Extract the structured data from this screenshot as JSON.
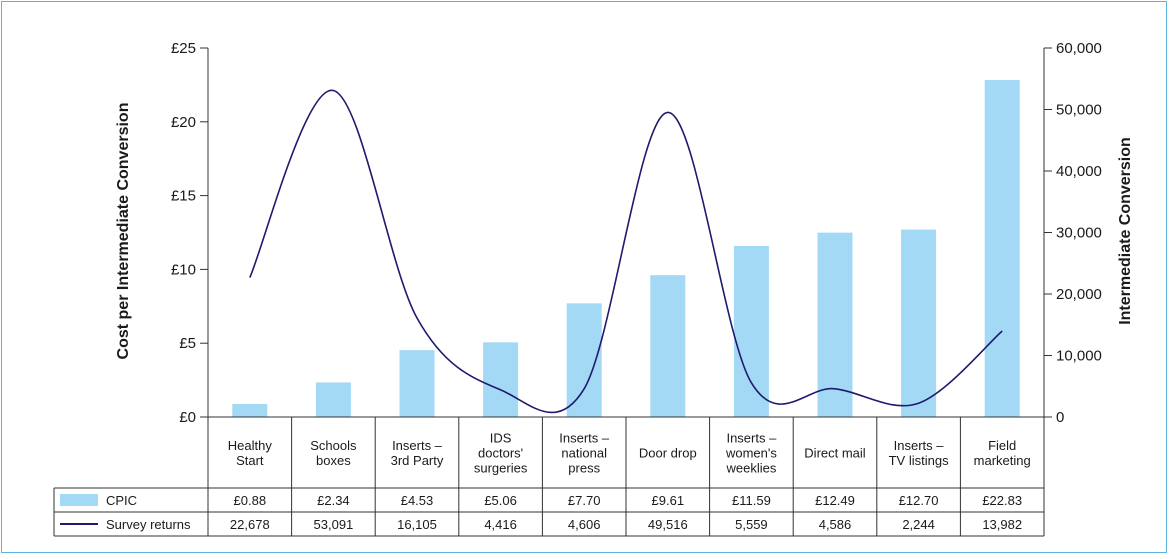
{
  "chart_data": {
    "type": "bar",
    "categories": [
      [
        "Healthy",
        "Start"
      ],
      [
        "Schools",
        "boxes"
      ],
      [
        "Inserts –",
        "3rd Party"
      ],
      [
        "IDS",
        "doctors'",
        "surgeries"
      ],
      [
        "Inserts –",
        "national",
        "press"
      ],
      [
        "Door drop"
      ],
      [
        "Inserts –",
        "women's",
        "weeklies"
      ],
      [
        "Direct mail"
      ],
      [
        "Inserts –",
        "TV listings"
      ],
      [
        "Field",
        "marketing"
      ]
    ],
    "ylabel": "Cost per Intermediate Conversion",
    "y2label": "Intermediate Conversion",
    "ylim": [
      0,
      25
    ],
    "y2lim": [
      0,
      60000
    ],
    "yticks": [
      "£0",
      "£5",
      "£10",
      "£15",
      "£20",
      "£25"
    ],
    "y2ticks": [
      "0",
      "10,000",
      "20,000",
      "30,000",
      "40,000",
      "50,000",
      "60,000"
    ],
    "series": [
      {
        "name": "CPIC",
        "kind": "bar",
        "axis": "left",
        "color": "#a3d9f5",
        "values": [
          0.88,
          2.34,
          4.53,
          5.06,
          7.7,
          9.61,
          11.59,
          12.49,
          12.7,
          22.83
        ],
        "labels": [
          "£0.88",
          "£2.34",
          "£4.53",
          "£5.06",
          "£7.70",
          "£9.61",
          "£11.59",
          "£12.49",
          "£12.70",
          "£22.83"
        ]
      },
      {
        "name": "Survey returns",
        "kind": "line",
        "axis": "right",
        "color": "#1f1a6e",
        "values": [
          22678,
          53091,
          16105,
          4416,
          4606,
          49516,
          5559,
          4586,
          2244,
          13982
        ],
        "labels": [
          "22,678",
          "53,091",
          "16,105",
          "4,416",
          "4,606",
          "49,516",
          "5,559",
          "4,586",
          "2,244",
          "13,982"
        ]
      }
    ],
    "legend": "data-table"
  }
}
